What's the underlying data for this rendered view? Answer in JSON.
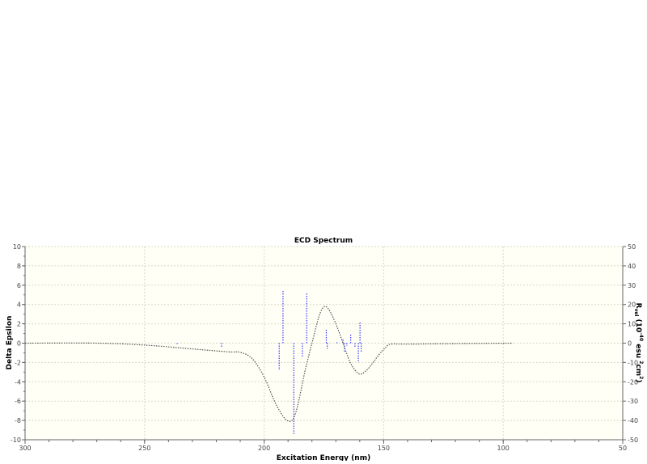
{
  "chart_data": {
    "type": "line",
    "title": "ECD Spectrum",
    "xlabel": "Excitation Energy (nm)",
    "ylabel": "Delta Epsilon",
    "y2label": "R vel (10^-40 esu^2 cm^2)",
    "y2label_parts": {
      "main": "R",
      "sub": "vel",
      "open": " (10",
      "exp1": "-40",
      "mid": " esu ",
      "exp2": "2",
      "unit": "cm",
      "exp3": "2",
      "close": ")"
    },
    "xlim": [
      300,
      50
    ],
    "ylim": [
      -10,
      10
    ],
    "y2lim": [
      -50,
      50
    ],
    "xticks": [
      300,
      250,
      200,
      150,
      100,
      50
    ],
    "yticks": [
      10,
      8,
      6,
      4,
      2,
      0,
      -2,
      -4,
      -6,
      -8,
      -10
    ],
    "y2ticks": [
      50,
      40,
      30,
      20,
      10,
      0,
      -10,
      -20,
      -30,
      -40,
      -50
    ],
    "grid": true,
    "colors": {
      "background": "#fffff5",
      "curve": "#555555",
      "sticks": "#3b3bff",
      "grid": "#d8d8c8"
    },
    "series": [
      {
        "kind": "curve",
        "axis": "left",
        "x": [
          300,
          270,
          250,
          230,
          215,
          210,
          205,
          200,
          195.5,
          192,
          190,
          188,
          186,
          183,
          180,
          177,
          175,
          173,
          170,
          167,
          164,
          161,
          159,
          156,
          152,
          149,
          147,
          140,
          120,
          96
        ],
        "y": [
          0,
          0,
          -0.2,
          -0.6,
          -0.9,
          -0.95,
          -1.6,
          -3.5,
          -6.1,
          -7.6,
          -8.05,
          -7.9,
          -6.5,
          -3.0,
          0,
          2.8,
          3.75,
          3.5,
          2.0,
          0,
          -2.0,
          -3.05,
          -3.15,
          -2.5,
          -1.2,
          -0.4,
          -0.1,
          -0.1,
          -0.05,
          0
        ]
      },
      {
        "kind": "sticks",
        "axis": "right",
        "x": [
          236.4,
          217.8,
          193.7,
          192.1,
          187.6,
          184.0,
          182.2,
          174.0,
          173.6,
          169.5,
          167.0,
          166.4,
          165.4,
          163.8,
          162.0,
          160.6,
          159.9,
          159.4
        ],
        "y": [
          -0.5,
          -2,
          -14,
          27,
          -47,
          -7,
          26,
          7,
          -3,
          0.5,
          2,
          -5,
          -1.5,
          5,
          -2.5,
          -10,
          11,
          -5
        ]
      }
    ]
  }
}
